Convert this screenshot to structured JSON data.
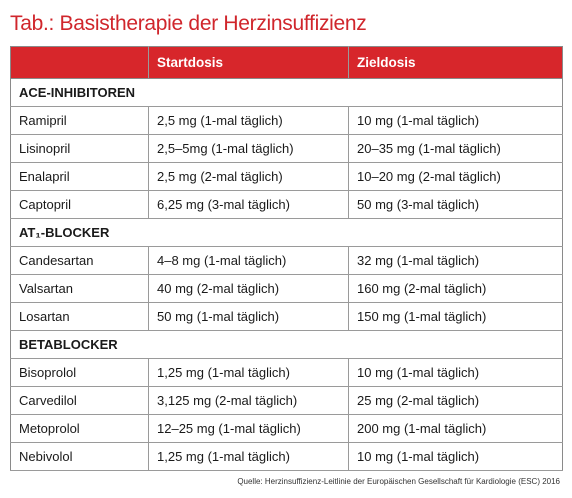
{
  "title": "Tab.: Basistherapie der Herzinsuffizienz",
  "table": {
    "columns": [
      "Startdosis",
      "Zieldosis"
    ],
    "groups": [
      {
        "name": "ACE-INHIBITOREN",
        "rows": [
          [
            "Ramipril",
            "2,5 mg (1-mal täglich)",
            "10 mg (1-mal täglich)"
          ],
          [
            "Lisinopril",
            "2,5–5mg (1-mal täglich)",
            "20–35 mg (1-mal täglich)"
          ],
          [
            "Enalapril",
            "2,5 mg (2-mal täglich)",
            "10–20 mg (2-mal täglich)"
          ],
          [
            "Captopril",
            "6,25 mg (3-mal täglich)",
            "50 mg (3-mal täglich)"
          ]
        ]
      },
      {
        "name": "AT₁-BLOCKER",
        "rows": [
          [
            "Candesartan",
            "4–8 mg (1-mal täglich)",
            "32 mg (1-mal täglich)"
          ],
          [
            "Valsartan",
            "40 mg (2-mal täglich)",
            "160 mg (2-mal täglich)"
          ],
          [
            "Losartan",
            "50 mg (1-mal täglich)",
            "150 mg (1-mal täglich)"
          ]
        ]
      },
      {
        "name": "BETABLOCKER",
        "rows": [
          [
            "Bisoprolol",
            "1,25 mg (1-mal täglich)",
            "10 mg (1-mal täglich)"
          ],
          [
            "Carvedilol",
            "3,125 mg (2-mal täglich)",
            "25 mg (2-mal täglich)"
          ],
          [
            "Metoprolol",
            "12–25 mg (1-mal täglich)",
            "200 mg (1-mal täglich)"
          ],
          [
            "Nebivolol",
            "1,25 mg (1-mal täglich)",
            "10 mg (1-mal täglich)"
          ]
        ]
      }
    ]
  },
  "source": "Quelle: Herzinsuffizienz-Leitlinie der Europäischen Gesellschaft für Kardiologie (ESC) 2016"
}
